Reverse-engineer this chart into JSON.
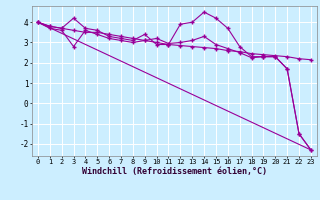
{
  "xlabel": "Windchill (Refroidissement éolien,°C)",
  "bg_color": "#cceeff",
  "line_color": "#990099",
  "grid_color": "#aaddcc",
  "xlim": [
    -0.5,
    23.5
  ],
  "ylim": [
    -2.6,
    4.8
  ],
  "yticks": [
    -2,
    -1,
    0,
    1,
    2,
    3,
    4
  ],
  "xticks": [
    0,
    1,
    2,
    3,
    4,
    5,
    6,
    7,
    8,
    9,
    10,
    11,
    12,
    13,
    14,
    15,
    16,
    17,
    18,
    19,
    20,
    21,
    22,
    23
  ],
  "series1_x": [
    0,
    1,
    2,
    3,
    4,
    5,
    6,
    7,
    8,
    9,
    10,
    11,
    12,
    13,
    14,
    15,
    16,
    17,
    18,
    19,
    20,
    21,
    22,
    23
  ],
  "series1_y": [
    4.0,
    3.8,
    3.7,
    4.2,
    3.7,
    3.6,
    3.3,
    3.2,
    3.1,
    3.4,
    2.9,
    2.9,
    3.9,
    4.0,
    4.5,
    4.2,
    3.7,
    2.8,
    2.3,
    2.3,
    2.3,
    1.7,
    -1.5,
    -2.3
  ],
  "series2_x": [
    0,
    1,
    2,
    3,
    4,
    5,
    6,
    7,
    8,
    9,
    10,
    11,
    12,
    13,
    14,
    15,
    16,
    17,
    18,
    19,
    20,
    21,
    22,
    23
  ],
  "series2_y": [
    4.0,
    3.8,
    3.7,
    3.6,
    3.5,
    3.5,
    3.4,
    3.3,
    3.2,
    3.1,
    3.0,
    2.9,
    2.85,
    2.8,
    2.75,
    2.7,
    2.6,
    2.55,
    2.45,
    2.4,
    2.35,
    2.3,
    2.2,
    2.15
  ],
  "series3_x": [
    0,
    1,
    2,
    3,
    4,
    5,
    6,
    7,
    8,
    9,
    10,
    11,
    12,
    13,
    14,
    15,
    16,
    17,
    18,
    19,
    20,
    21,
    22,
    23
  ],
  "series3_y": [
    4.0,
    3.7,
    3.6,
    2.8,
    3.6,
    3.4,
    3.2,
    3.1,
    3.0,
    3.1,
    3.2,
    2.95,
    3.0,
    3.1,
    3.3,
    2.9,
    2.7,
    2.5,
    2.25,
    2.3,
    2.3,
    1.7,
    -1.5,
    -2.3
  ],
  "series4_x": [
    0,
    23
  ],
  "series4_y": [
    4.0,
    -2.3
  ]
}
